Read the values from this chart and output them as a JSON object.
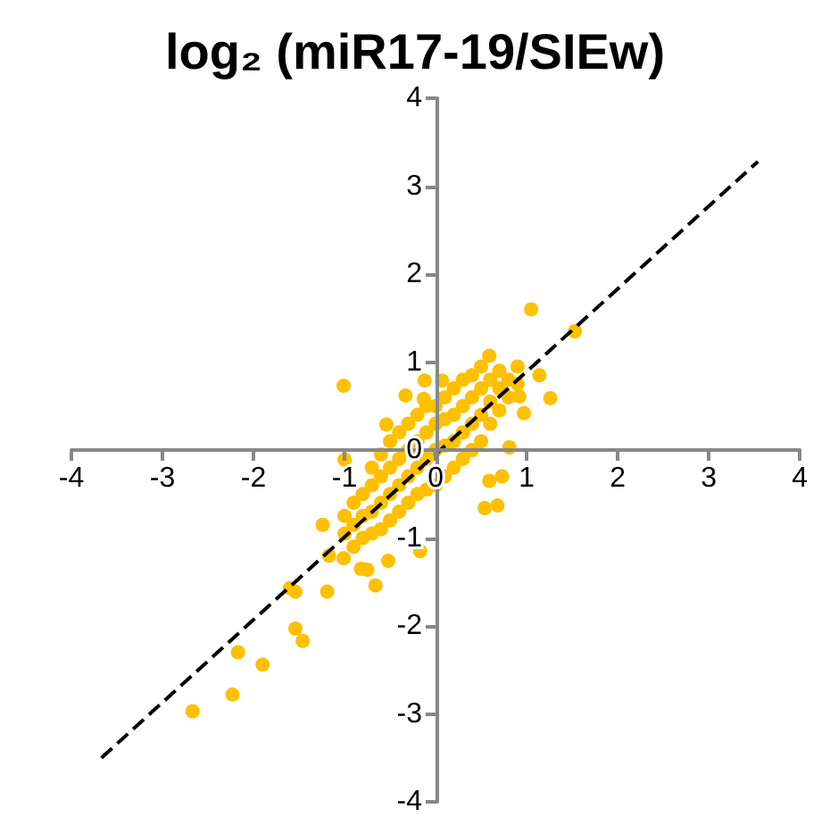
{
  "chart_data": {
    "type": "scatter",
    "title": "log₂ (miR17-19/SIEw)",
    "xlim": [
      -4,
      4
    ],
    "ylim": [
      -4,
      4
    ],
    "xticks": [
      -4,
      -3,
      -2,
      -1,
      0,
      1,
      2,
      3,
      4
    ],
    "yticks": [
      -4,
      -3,
      -2,
      -1,
      0,
      1,
      2,
      3,
      4
    ],
    "marker": "circle",
    "series": [
      {
        "color": "#ffc000",
        "x": [
          -2.67,
          -2.23,
          -2.17,
          -1.9,
          -1.54,
          -1.46,
          -1.6,
          -1.54,
          -1.19,
          -1.24,
          -1.17,
          -1.01,
          -0.75,
          -0.66,
          -0.52,
          -0.17,
          -0.82,
          1.05,
          1.53,
          -1.01,
          1.26,
          1.14,
          0.97,
          0.81,
          0.73,
          0.59,
          0.68,
          0.54,
          -1.0,
          -0.54,
          -0.33,
          -0.12,
          0.07,
          0.59,
          -0.13,
          0.92,
          -1.0,
          -1.0,
          -0.9,
          -0.9,
          -0.9,
          -0.8,
          -0.8,
          -0.8,
          -0.7,
          -0.7,
          -0.7,
          -0.7,
          -0.6,
          -0.6,
          -0.6,
          -0.6,
          -0.5,
          -0.5,
          -0.5,
          -0.5,
          -0.4,
          -0.4,
          -0.4,
          -0.4,
          -0.3,
          -0.3,
          -0.3,
          -0.3,
          -0.2,
          -0.2,
          -0.2,
          -0.2,
          -0.1,
          -0.1,
          -0.1,
          -0.1,
          0,
          0,
          0,
          0,
          0.1,
          0.1,
          0.1,
          0.1,
          0.2,
          0.2,
          0.2,
          0.2,
          0.3,
          0.3,
          0.3,
          0.3,
          0.4,
          0.4,
          0.4,
          0.4,
          0.5,
          0.5,
          0.5,
          0.5,
          0.6,
          0.6,
          0.6,
          0.7,
          0.7,
          0.7,
          0.8,
          0.8,
          0.9,
          0.9
        ],
        "values": [
          -2.97,
          -2.78,
          -2.3,
          -2.44,
          -2.03,
          -2.17,
          -1.57,
          -1.61,
          -1.61,
          -0.85,
          -1.2,
          -1.23,
          -1.36,
          -1.54,
          -1.26,
          -1.15,
          -1.35,
          1.6,
          1.35,
          0.73,
          0.59,
          0.85,
          0.42,
          0.03,
          -0.3,
          -0.35,
          -0.63,
          -0.66,
          -0.11,
          0.29,
          0.62,
          0.79,
          0.79,
          1.07,
          0.58,
          0.61,
          -0.95,
          -0.75,
          -1.1,
          -0.85,
          -0.6,
          -1.0,
          -0.75,
          -0.5,
          -0.95,
          -0.7,
          -0.4,
          -0.2,
          -0.9,
          -0.6,
          -0.3,
          -0.05,
          -0.8,
          -0.5,
          -0.2,
          0.1,
          -0.7,
          -0.4,
          -0.1,
          0.2,
          -0.6,
          -0.3,
          0,
          0.3,
          -0.5,
          -0.2,
          0.1,
          0.4,
          -0.45,
          -0.1,
          0.2,
          0.5,
          -0.4,
          0,
          0.3,
          0.5,
          -0.3,
          0.05,
          0.35,
          0.6,
          -0.2,
          0.1,
          0.4,
          0.7,
          -0.1,
          0.2,
          0.5,
          0.8,
          0,
          0.3,
          0.6,
          0.85,
          0.1,
          0.4,
          0.7,
          0.95,
          0.3,
          0.55,
          0.8,
          0.45,
          0.7,
          0.9,
          0.6,
          0.8,
          0.75,
          0.95
        ]
      },
      {
        "type": "line",
        "color": "#000000",
        "line_style": "dashed",
        "marker": "none",
        "x": [
          -3.67,
          3.54
        ],
        "values": [
          -3.5,
          3.28
        ]
      }
    ]
  }
}
